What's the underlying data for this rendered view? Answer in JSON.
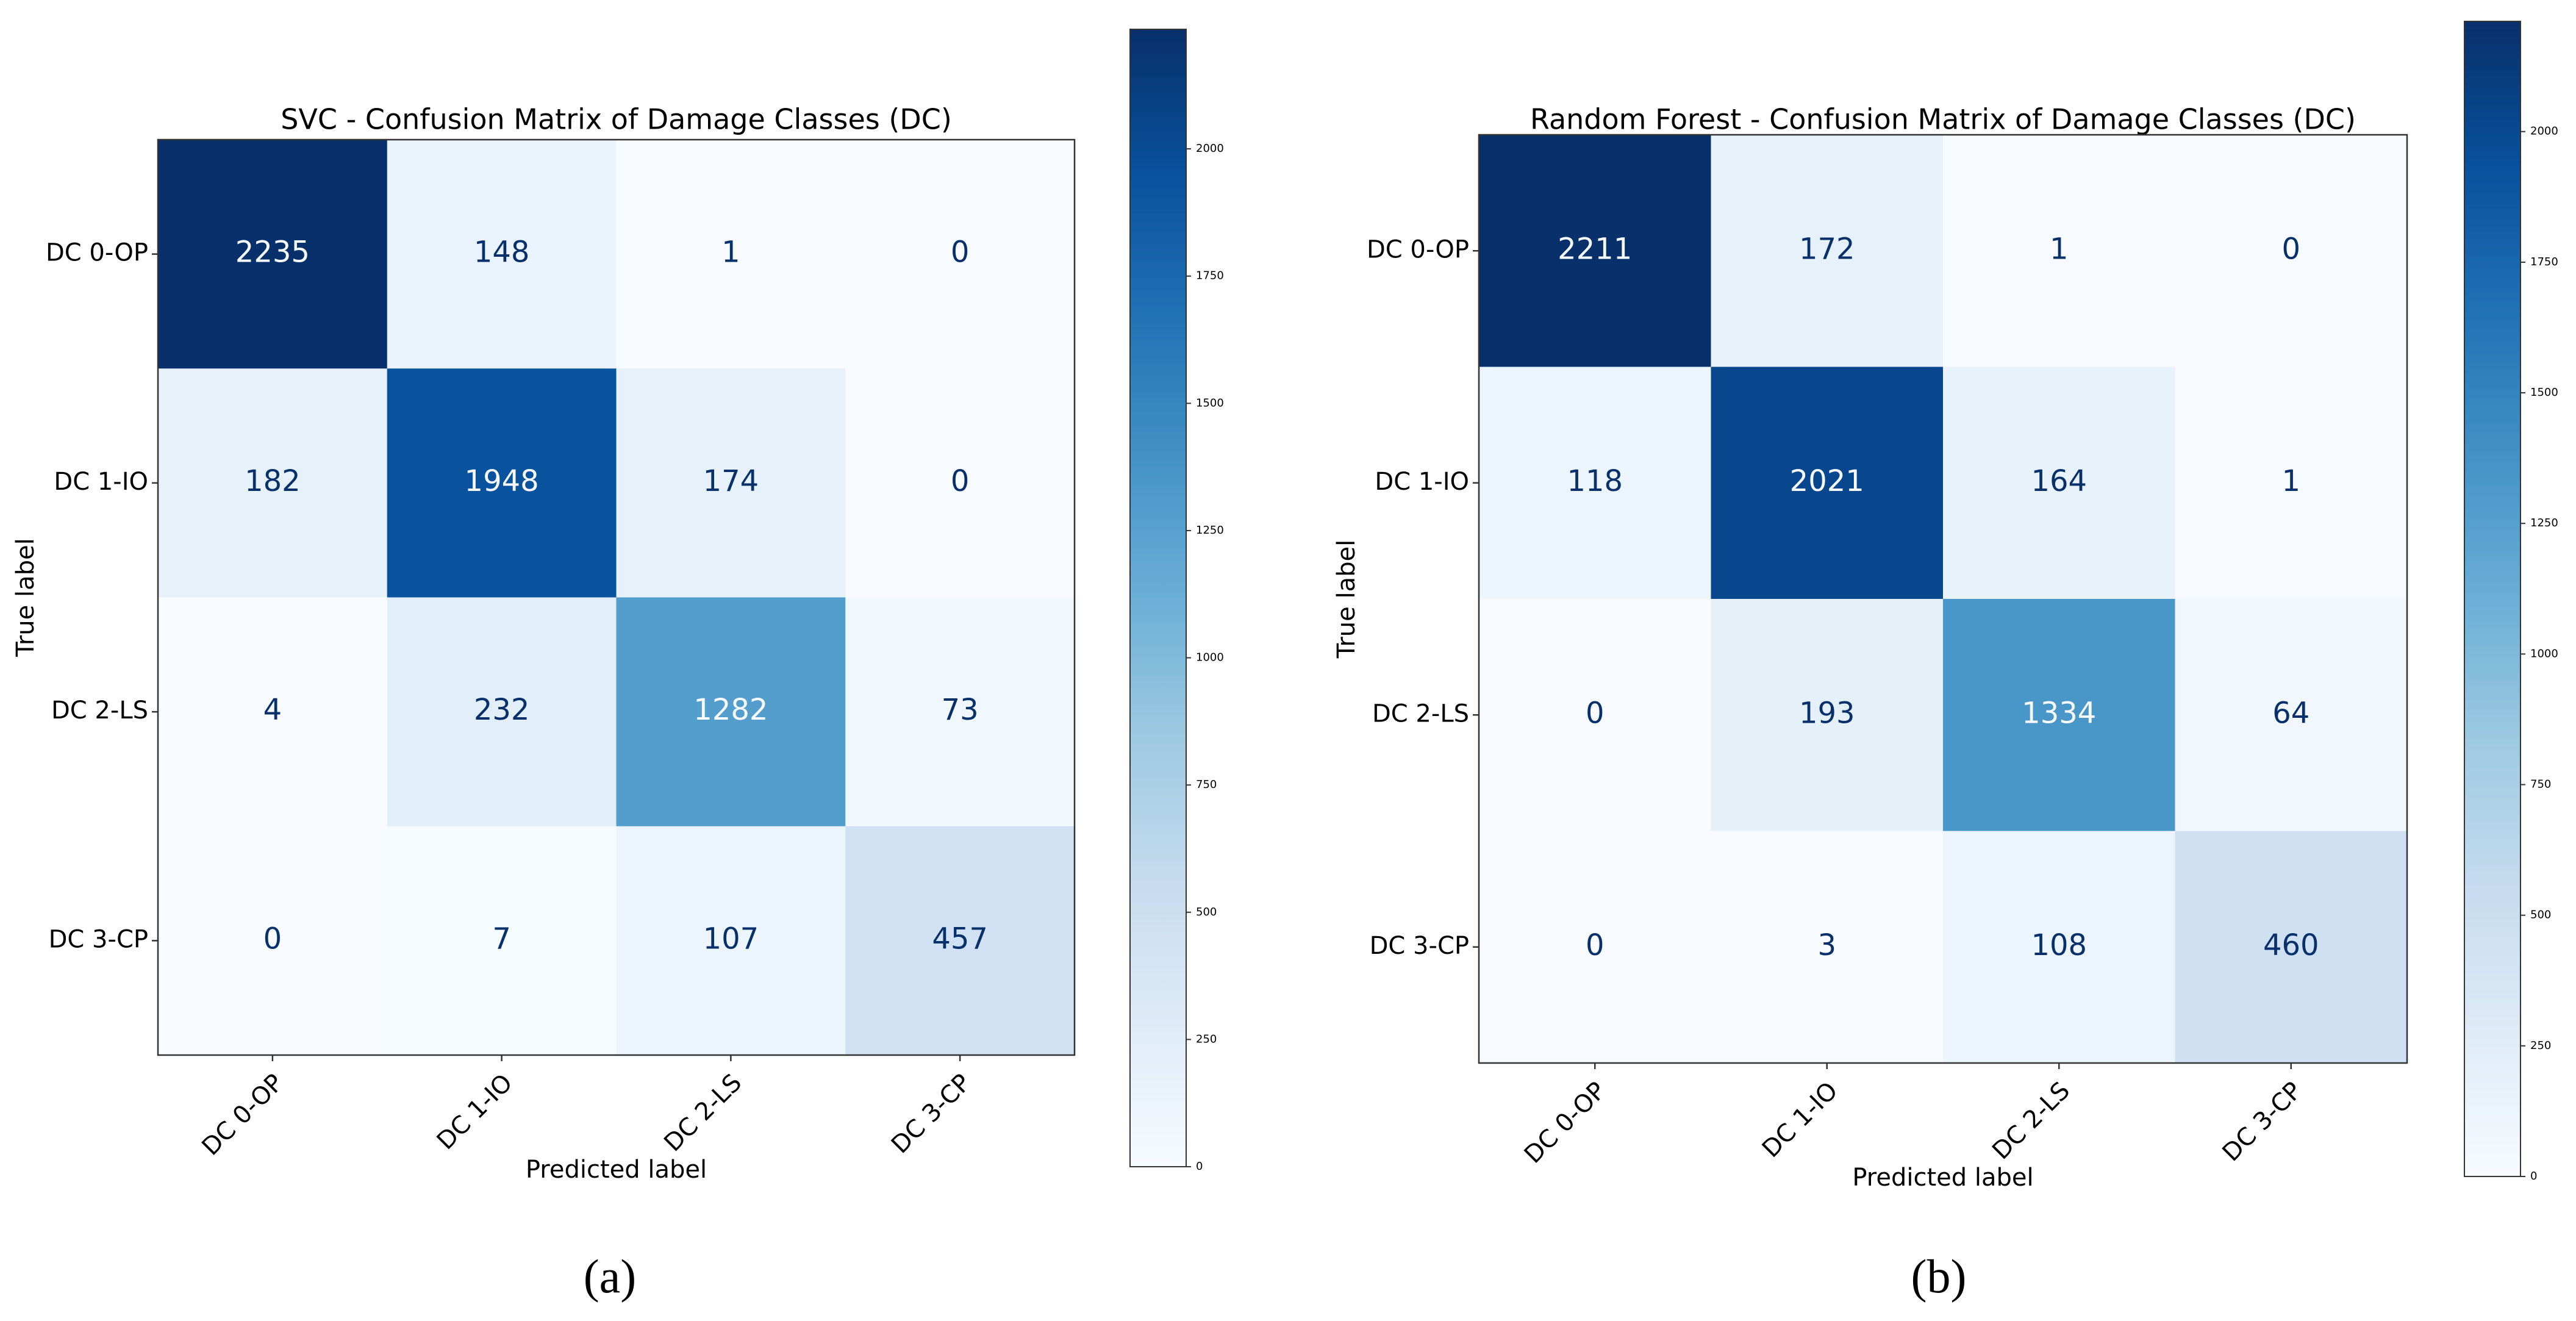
{
  "chart_data": [
    {
      "type": "heatmap",
      "title": "SVC - Confusion Matrix of Damage Classes (DC)",
      "xlabel": "Predicted label",
      "ylabel": "True label",
      "x": [
        "DC 0-OP",
        "DC 1-IO",
        "DC 2-LS",
        "DC 3-CP"
      ],
      "y": [
        "DC 0-OP",
        "DC 1-IO",
        "DC 2-LS",
        "DC 3-CP"
      ],
      "values": [
        [
          2235,
          148,
          1,
          0
        ],
        [
          182,
          1948,
          174,
          0
        ],
        [
          4,
          232,
          1282,
          73
        ],
        [
          0,
          7,
          107,
          457
        ]
      ],
      "cmap": "Blues",
      "colorbar_lim": [
        0,
        2235
      ],
      "colorbar_ticks": [
        0,
        250,
        500,
        750,
        1000,
        1250,
        1500,
        1750,
        2000
      ],
      "caption": "(a)"
    },
    {
      "type": "heatmap",
      "title": "Random Forest - Confusion Matrix of Damage Classes (DC)",
      "xlabel": "Predicted label",
      "ylabel": "True label",
      "x": [
        "DC 0-OP",
        "DC 1-IO",
        "DC 2-LS",
        "DC 3-CP"
      ],
      "y": [
        "DC 0-OP",
        "DC 1-IO",
        "DC 2-LS",
        "DC 3-CP"
      ],
      "values": [
        [
          2211,
          172,
          1,
          0
        ],
        [
          118,
          2021,
          164,
          1
        ],
        [
          0,
          193,
          1334,
          64
        ],
        [
          0,
          3,
          108,
          460
        ]
      ],
      "cmap": "Blues",
      "colorbar_lim": [
        0,
        2211
      ],
      "colorbar_ticks": [
        0,
        250,
        500,
        750,
        1000,
        1250,
        1500,
        1750,
        2000
      ],
      "caption": "(b)"
    }
  ]
}
